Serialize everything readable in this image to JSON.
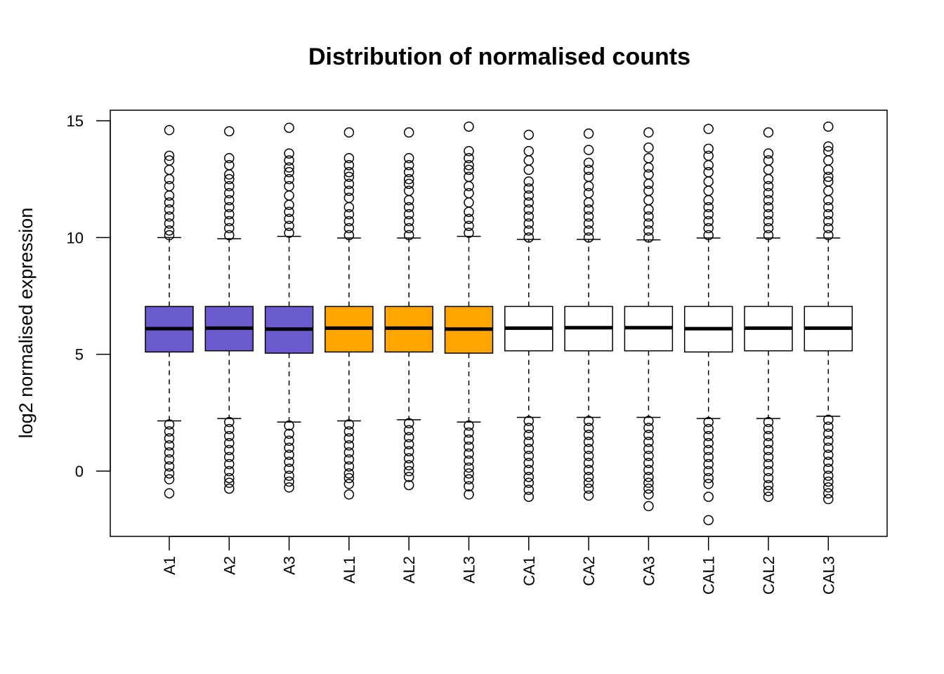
{
  "chart_data": {
    "type": "boxplot",
    "title": "Distribution of normalised counts",
    "xlabel": "",
    "ylabel": "log2 normalised expression",
    "ylim": [
      -2.8,
      15.5
    ],
    "yticks": [
      0,
      5,
      10,
      15
    ],
    "grid": false,
    "categories": [
      "A1",
      "A2",
      "A3",
      "AL1",
      "AL2",
      "AL3",
      "CA1",
      "CA2",
      "CA3",
      "CAL1",
      "CAL2",
      "CAL3"
    ],
    "colors": [
      "#6a5acd",
      "#6a5acd",
      "#6a5acd",
      "#ffa500",
      "#ffa500",
      "#ffa500",
      "#ffffff",
      "#ffffff",
      "#ffffff",
      "#ffffff",
      "#ffffff",
      "#ffffff"
    ],
    "boxes": [
      {
        "q1": 5.1,
        "median": 6.1,
        "q3": 7.05,
        "whisker_low": 2.15,
        "whisker_high": 10.0,
        "out_high": [
          10.1,
          10.3,
          10.6,
          10.9,
          11.2,
          11.5,
          11.8,
          12.2,
          12.5,
          12.9,
          13.3,
          13.5,
          14.6
        ],
        "out_low": [
          2.0,
          1.7,
          1.4,
          1.1,
          0.8,
          0.5,
          0.2,
          -0.1,
          -0.35,
          -0.95
        ]
      },
      {
        "q1": 5.15,
        "median": 6.12,
        "q3": 7.05,
        "whisker_low": 2.25,
        "whisker_high": 9.95,
        "out_high": [
          10.1,
          10.4,
          10.7,
          11.0,
          11.3,
          11.6,
          11.9,
          12.2,
          12.5,
          12.7,
          13.1,
          13.4,
          14.55
        ],
        "out_low": [
          2.1,
          1.8,
          1.5,
          1.2,
          0.9,
          0.6,
          0.3,
          0.0,
          -0.3,
          -0.5,
          -0.75
        ]
      },
      {
        "q1": 5.05,
        "median": 6.08,
        "q3": 7.05,
        "whisker_low": 2.1,
        "whisker_high": 10.05,
        "out_high": [
          10.2,
          10.5,
          10.8,
          11.1,
          11.4,
          11.8,
          12.2,
          12.5,
          12.8,
          13.0,
          13.3,
          13.6,
          14.7
        ],
        "out_low": [
          1.95,
          1.6,
          1.3,
          1.0,
          0.7,
          0.4,
          0.1,
          -0.2,
          -0.45,
          -0.7
        ]
      },
      {
        "q1": 5.1,
        "median": 6.12,
        "q3": 7.05,
        "whisker_low": 2.15,
        "whisker_high": 9.98,
        "out_high": [
          10.1,
          10.4,
          10.7,
          11.0,
          11.3,
          11.7,
          12.0,
          12.3,
          12.6,
          12.8,
          13.1,
          13.4,
          14.5
        ],
        "out_low": [
          2.0,
          1.7,
          1.4,
          1.1,
          0.8,
          0.5,
          0.2,
          -0.1,
          -0.3,
          -0.55,
          -1.0
        ]
      },
      {
        "q1": 5.1,
        "median": 6.12,
        "q3": 7.05,
        "whisker_low": 2.2,
        "whisker_high": 9.98,
        "out_high": [
          10.1,
          10.4,
          10.7,
          11.0,
          11.3,
          11.6,
          12.0,
          12.3,
          12.5,
          12.8,
          13.1,
          13.4,
          14.5
        ],
        "out_low": [
          2.05,
          1.75,
          1.45,
          1.15,
          0.85,
          0.55,
          0.25,
          0.0,
          -0.25,
          -0.6
        ]
      },
      {
        "q1": 5.05,
        "median": 6.08,
        "q3": 7.05,
        "whisker_low": 2.1,
        "whisker_high": 10.05,
        "out_high": [
          10.2,
          10.5,
          10.8,
          11.1,
          11.5,
          11.9,
          12.2,
          12.6,
          12.9,
          13.1,
          13.4,
          13.7,
          14.75
        ],
        "out_low": [
          1.95,
          1.65,
          1.35,
          1.05,
          0.75,
          0.45,
          0.15,
          -0.1,
          -0.35,
          -0.65,
          -1.0
        ]
      },
      {
        "q1": 5.15,
        "median": 6.12,
        "q3": 7.05,
        "whisker_low": 2.3,
        "whisker_high": 9.92,
        "out_high": [
          10.0,
          10.3,
          10.6,
          10.9,
          11.2,
          11.5,
          11.8,
          12.1,
          12.4,
          12.9,
          13.3,
          13.7,
          14.4
        ],
        "out_low": [
          2.15,
          1.85,
          1.55,
          1.25,
          0.95,
          0.65,
          0.35,
          0.05,
          -0.25,
          -0.5,
          -0.8,
          -1.1
        ]
      },
      {
        "q1": 5.15,
        "median": 6.14,
        "q3": 7.05,
        "whisker_low": 2.3,
        "whisker_high": 9.92,
        "out_high": [
          10.0,
          10.3,
          10.6,
          10.9,
          11.2,
          11.5,
          11.9,
          12.2,
          12.6,
          12.9,
          13.2,
          13.75,
          14.45
        ],
        "out_low": [
          2.15,
          1.85,
          1.55,
          1.25,
          0.95,
          0.65,
          0.35,
          0.05,
          -0.25,
          -0.5,
          -0.75,
          -1.05
        ]
      },
      {
        "q1": 5.15,
        "median": 6.14,
        "q3": 7.05,
        "whisker_low": 2.3,
        "whisker_high": 9.9,
        "out_high": [
          10.0,
          10.3,
          10.6,
          10.9,
          11.2,
          11.6,
          12.0,
          12.3,
          12.7,
          13.0,
          13.4,
          13.85,
          14.5
        ],
        "out_low": [
          2.15,
          1.85,
          1.55,
          1.25,
          0.95,
          0.65,
          0.35,
          0.05,
          -0.25,
          -0.5,
          -0.75,
          -1.0,
          -1.5
        ]
      },
      {
        "q1": 5.1,
        "median": 6.1,
        "q3": 7.05,
        "whisker_low": 2.25,
        "whisker_high": 9.98,
        "out_high": [
          10.1,
          10.4,
          10.7,
          11.0,
          11.3,
          11.6,
          12.0,
          12.4,
          12.8,
          13.1,
          13.5,
          13.8,
          14.65
        ],
        "out_low": [
          2.1,
          1.8,
          1.5,
          1.2,
          0.9,
          0.6,
          0.3,
          0.0,
          -0.3,
          -0.55,
          -1.1,
          -2.1
        ]
      },
      {
        "q1": 5.15,
        "median": 6.12,
        "q3": 7.05,
        "whisker_low": 2.25,
        "whisker_high": 9.98,
        "out_high": [
          10.1,
          10.4,
          10.7,
          11.0,
          11.3,
          11.6,
          11.9,
          12.2,
          12.5,
          12.9,
          13.3,
          13.6,
          14.5
        ],
        "out_low": [
          2.1,
          1.8,
          1.5,
          1.2,
          0.9,
          0.6,
          0.3,
          0.0,
          -0.3,
          -0.6,
          -0.85,
          -1.1
        ]
      },
      {
        "q1": 5.15,
        "median": 6.12,
        "q3": 7.05,
        "whisker_low": 2.35,
        "whisker_high": 9.98,
        "out_high": [
          10.1,
          10.4,
          10.7,
          11.0,
          11.3,
          11.6,
          12.0,
          12.4,
          12.6,
          12.9,
          13.3,
          13.7,
          13.9,
          14.75
        ],
        "out_low": [
          2.2,
          1.9,
          1.6,
          1.3,
          1.0,
          0.7,
          0.4,
          0.1,
          -0.2,
          -0.45,
          -0.7,
          -0.95,
          -1.2
        ]
      }
    ]
  }
}
